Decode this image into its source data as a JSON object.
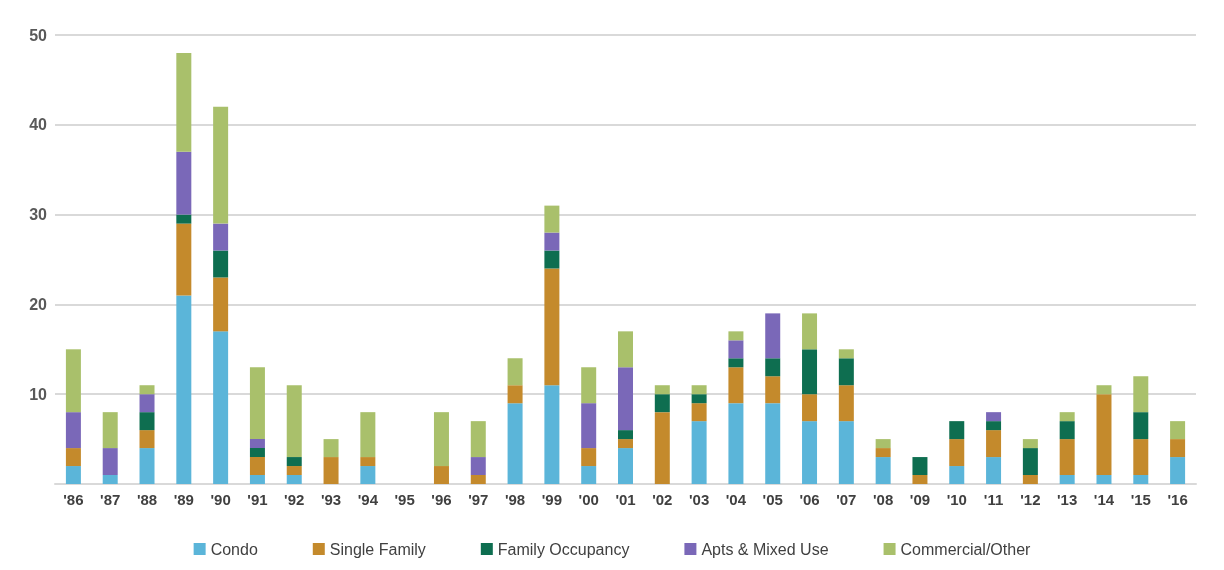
{
  "chart_data": {
    "type": "bar",
    "stacked": true,
    "categories": [
      "'86",
      "'87",
      "'88",
      "'89",
      "'90",
      "'91",
      "'92",
      "'93",
      "'94",
      "'95",
      "'96",
      "'97",
      "'98",
      "'99",
      "'00",
      "'01",
      "'02",
      "'03",
      "'04",
      "'05",
      "'06",
      "'07",
      "'08",
      "'09",
      "'10",
      "'11",
      "'12",
      "'13",
      "'14",
      "'15",
      "'16"
    ],
    "series": [
      {
        "name": "Condo",
        "color": "#5bb5d9",
        "values": [
          2,
          1,
          4,
          21,
          17,
          1,
          1,
          0,
          2,
          0,
          0,
          0,
          9,
          11,
          2,
          4,
          0,
          7,
          9,
          9,
          7,
          7,
          3,
          0,
          2,
          3,
          0,
          1,
          1,
          1,
          3
        ]
      },
      {
        "name": "Single Family",
        "color": "#c48a2c",
        "values": [
          2,
          0,
          2,
          8,
          6,
          2,
          1,
          3,
          1,
          0,
          2,
          1,
          2,
          13,
          2,
          1,
          8,
          2,
          4,
          3,
          3,
          4,
          1,
          1,
          3,
          3,
          1,
          4,
          9,
          4,
          2
        ]
      },
      {
        "name": "Family Occupancy",
        "color": "#0e6e50",
        "values": [
          0,
          0,
          2,
          1,
          3,
          1,
          1,
          0,
          0,
          0,
          0,
          0,
          0,
          2,
          0,
          1,
          2,
          1,
          1,
          2,
          5,
          3,
          0,
          2,
          2,
          1,
          3,
          2,
          0,
          3,
          0
        ]
      },
      {
        "name": "Apts & Mixed Use",
        "color": "#7a68b8",
        "values": [
          4,
          3,
          2,
          7,
          3,
          1,
          0,
          0,
          0,
          0,
          0,
          2,
          0,
          2,
          5,
          7,
          0,
          0,
          2,
          5,
          0,
          0,
          0,
          0,
          0,
          1,
          0,
          0,
          0,
          0,
          0
        ]
      },
      {
        "name": "Commercial/Other",
        "color": "#a9c06b",
        "values": [
          7,
          4,
          1,
          11,
          13,
          8,
          8,
          2,
          5,
          0,
          6,
          4,
          3,
          3,
          4,
          4,
          1,
          1,
          1,
          0,
          4,
          1,
          1,
          0,
          0,
          0,
          1,
          1,
          1,
          4,
          2
        ]
      }
    ],
    "ylim": [
      0,
      50
    ],
    "yticks": [
      {
        "value": 0,
        "label": null
      },
      10,
      20,
      30,
      40,
      50
    ],
    "grid": "y",
    "legend": "bottom"
  }
}
